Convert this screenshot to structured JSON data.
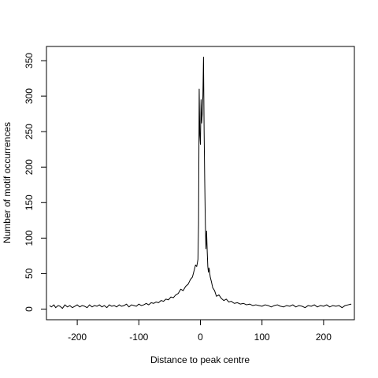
{
  "chart_data": {
    "type": "line",
    "title": "",
    "xlabel": "Distance to peak centre",
    "ylabel": "Number of motif occurrences",
    "xlim": [
      -250,
      250
    ],
    "ylim": [
      -15,
      370
    ],
    "grid": false,
    "x_ticks": [
      -200,
      -100,
      0,
      100,
      200
    ],
    "x_tick_labels": [
      "-200",
      "-100",
      "0",
      "100",
      "200"
    ],
    "y_ticks": [
      0,
      50,
      100,
      150,
      200,
      250,
      300,
      350
    ],
    "y_tick_labels": [
      "0",
      "50",
      "100",
      "150",
      "200",
      "250",
      "300",
      "350"
    ],
    "series": [
      {
        "color": "#000000",
        "x": [
          -245,
          -242,
          -238,
          -235,
          -231,
          -228,
          -224,
          -220,
          -216,
          -212,
          -208,
          -204,
          -200,
          -196,
          -192,
          -188,
          -184,
          -180,
          -176,
          -172,
          -168,
          -164,
          -160,
          -156,
          -152,
          -148,
          -144,
          -140,
          -136,
          -132,
          -128,
          -124,
          -120,
          -116,
          -112,
          -108,
          -104,
          -100,
          -96,
          -92,
          -88,
          -84,
          -80,
          -76,
          -72,
          -68,
          -64,
          -60,
          -56,
          -52,
          -48,
          -44,
          -40,
          -36,
          -32,
          -28,
          -24,
          -20,
          -16,
          -13,
          -10,
          -8,
          -6,
          -4,
          -3,
          -2,
          -1,
          0,
          1,
          2,
          3,
          4,
          5,
          6,
          7,
          8,
          9,
          10,
          11,
          12,
          13,
          14,
          16,
          18,
          20,
          23,
          26,
          30,
          34,
          38,
          42,
          46,
          50,
          55,
          60,
          65,
          70,
          75,
          80,
          85,
          90,
          95,
          100,
          105,
          110,
          115,
          120,
          125,
          130,
          135,
          140,
          145,
          150,
          155,
          160,
          165,
          170,
          175,
          180,
          185,
          190,
          195,
          200,
          205,
          210,
          215,
          220,
          225,
          230,
          235,
          240,
          245
        ],
        "y": [
          5,
          3,
          6,
          2,
          5,
          4,
          1,
          6,
          3,
          5,
          2,
          4,
          6,
          3,
          5,
          4,
          2,
          6,
          3,
          5,
          4,
          6,
          3,
          5,
          2,
          6,
          4,
          5,
          3,
          6,
          4,
          5,
          7,
          3,
          6,
          5,
          4,
          7,
          5,
          6,
          8,
          6,
          9,
          8,
          10,
          9,
          12,
          11,
          14,
          13,
          17,
          16,
          20,
          22,
          28,
          26,
          32,
          35,
          42,
          45,
          55,
          62,
          60,
          70,
          120,
          310,
          245,
          232,
          295,
          262,
          275,
          300,
          355,
          250,
          180,
          120,
          85,
          110,
          82,
          60,
          52,
          58,
          45,
          38,
          30,
          26,
          18,
          20,
          15,
          12,
          14,
          10,
          11,
          8,
          9,
          7,
          8,
          6,
          7,
          5,
          6,
          5,
          4,
          6,
          5,
          3,
          5,
          6,
          4,
          3,
          5,
          4,
          6,
          3,
          5,
          4,
          2,
          5,
          4,
          6,
          3,
          5,
          4,
          6,
          3,
          5,
          4,
          5,
          2,
          5,
          6,
          7
        ]
      }
    ]
  }
}
